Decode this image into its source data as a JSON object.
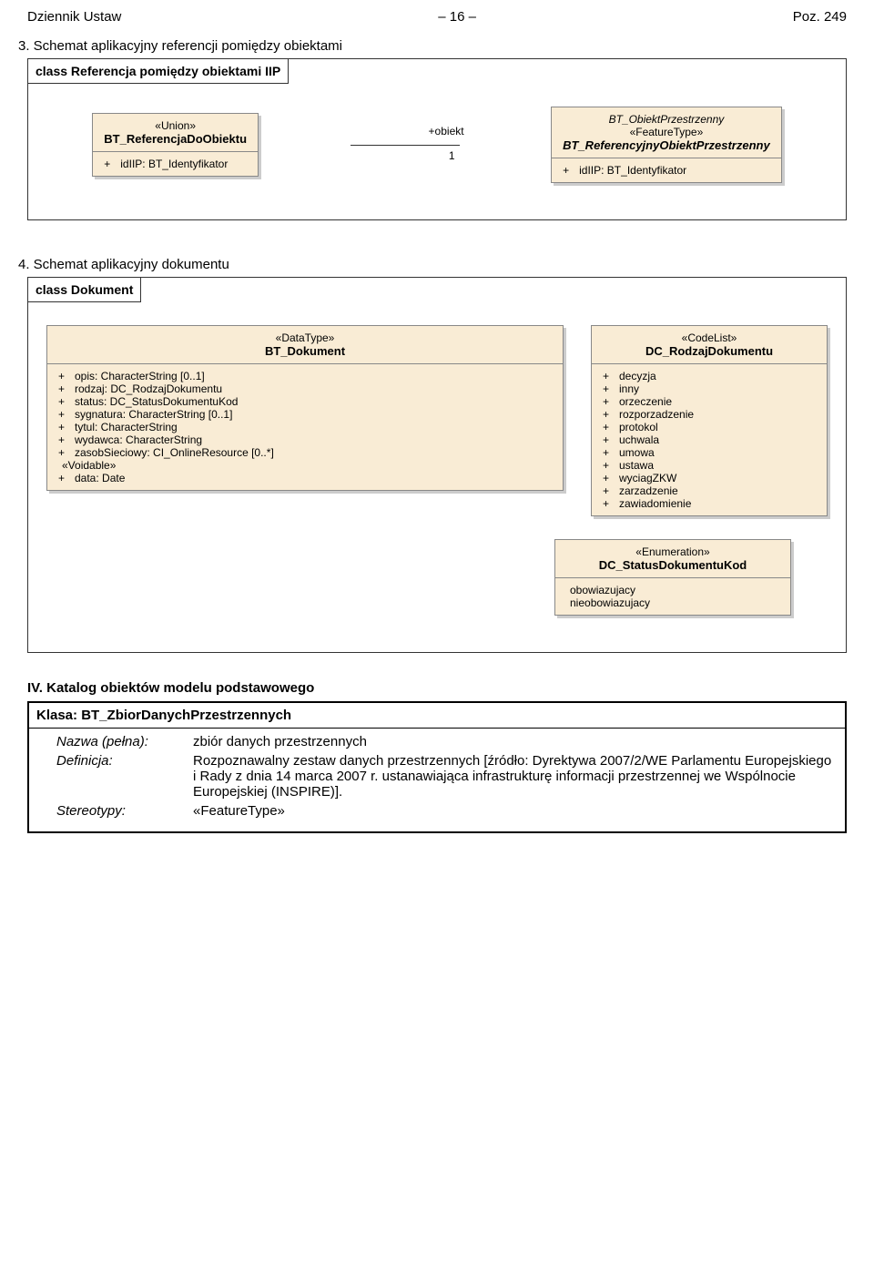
{
  "header": {
    "left": "Dziennik Ustaw",
    "center": "– 16 –",
    "right": "Poz. 249"
  },
  "section3": {
    "title": "3. Schemat aplikacyjny referencji pomiędzy obiektami",
    "containerLabel": "class Referencja pomiędzy obiektami IIP",
    "leftBox": {
      "stereo": "«Union»",
      "name": "BT_ReferencjaDoObiektu",
      "attrs": [
        {
          "sym": "+",
          "txt": "idIIP: BT_Identyfikator"
        }
      ]
    },
    "rel": {
      "top": "+obiekt",
      "bot": "1"
    },
    "rightBox": {
      "supertype": "BT_ObiektPrzestrzenny",
      "stereo": "«FeatureType»",
      "name": "BT_ReferencyjnyObiektPrzestrzenny",
      "attrs": [
        {
          "sym": "+",
          "txt": "idIIP: BT_Identyfikator"
        }
      ]
    }
  },
  "section4": {
    "title": "4. Schemat aplikacyjny dokumentu",
    "containerLabel": "class Dokument",
    "leftBox": {
      "stereo": "«DataType»",
      "name": "BT_Dokument",
      "attrs": [
        {
          "sym": "+",
          "txt": "opis: CharacterString [0..1]"
        },
        {
          "sym": "+",
          "txt": "rodzaj: DC_RodzajDokumentu"
        },
        {
          "sym": "+",
          "txt": "status: DC_StatusDokumentuKod"
        },
        {
          "sym": "+",
          "txt": "sygnatura: CharacterString [0..1]"
        },
        {
          "sym": "+",
          "txt": "tytul: CharacterString"
        },
        {
          "sym": "+",
          "txt": "wydawca: CharacterString"
        },
        {
          "sym": "+",
          "txt": "zasobSieciowy: CI_OnlineResource [0..*]"
        }
      ],
      "voidable": "«Voidable»",
      "voidAttrs": [
        {
          "sym": "+",
          "txt": "data: Date"
        }
      ]
    },
    "rightBox": {
      "stereo": "«CodeList»",
      "name": "DC_RodzajDokumentu",
      "attrs": [
        {
          "sym": "+",
          "txt": "decyzja"
        },
        {
          "sym": "+",
          "txt": "inny"
        },
        {
          "sym": "+",
          "txt": "orzeczenie"
        },
        {
          "sym": "+",
          "txt": "rozporzadzenie"
        },
        {
          "sym": "+",
          "txt": "protokol"
        },
        {
          "sym": "+",
          "txt": "uchwala"
        },
        {
          "sym": "+",
          "txt": "umowa"
        },
        {
          "sym": "+",
          "txt": "ustawa"
        },
        {
          "sym": "+",
          "txt": "wyciagZKW"
        },
        {
          "sym": "+",
          "txt": "zarzadzenie"
        },
        {
          "sym": "+",
          "txt": "zawiadomienie"
        }
      ]
    },
    "enumBox": {
      "stereo": "«Enumeration»",
      "name": "DC_StatusDokumentuKod",
      "attrs": [
        {
          "txt": "obowiazujacy"
        },
        {
          "txt": "nieobowiazujacy"
        }
      ]
    }
  },
  "catalog": {
    "sectionTitle": "IV. Katalog obiektów modelu podstawowego",
    "classHeader": "Klasa: BT_ZbiorDanychPrzestrzennych",
    "rows": [
      {
        "lbl": "Nazwa (pełna):",
        "val": "zbiór danych przestrzennych"
      },
      {
        "lbl": "Definicja:",
        "val": "Rozpoznawalny zestaw danych przestrzennych [źródło: Dyrektywa 2007/2/WE Parlamentu Europejskiego i Rady z dnia 14 marca 2007 r. ustanawiająca infrastrukturę informacji przestrzennej we Wspólnocie Europejskiej (INSPIRE)]."
      },
      {
        "lbl": "Stereotypy:",
        "val": "«FeatureType»"
      }
    ]
  }
}
